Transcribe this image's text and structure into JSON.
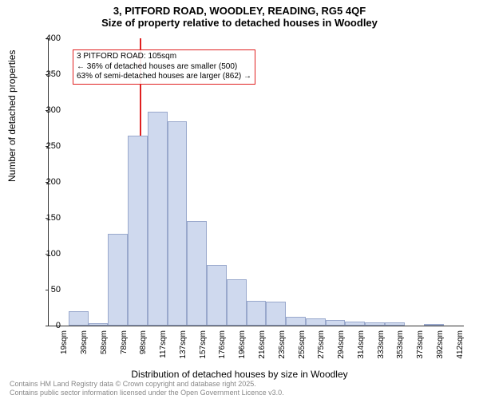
{
  "title_main": "3, PITFORD ROAD, WOODLEY, READING, RG5 4QF",
  "title_sub": "Size of property relative to detached houses in Woodley",
  "y_label": "Number of detached properties",
  "x_label": "Distribution of detached houses by size in Woodley",
  "footer_line1": "Contains HM Land Registry data © Crown copyright and database right 2025.",
  "footer_line2": "Contains public sector information licensed under the Open Government Licence v3.0.",
  "chart": {
    "type": "histogram",
    "ylim": [
      0,
      400
    ],
    "ytick_step": 50,
    "bar_fill": "#cfd9ee",
    "bar_stroke": "#99a8cc",
    "ref_line_color": "#e02020",
    "ref_line_x_value": 105,
    "background_color": "#ffffff",
    "categories": [
      "19sqm",
      "39sqm",
      "58sqm",
      "78sqm",
      "98sqm",
      "117sqm",
      "137sqm",
      "157sqm",
      "176sqm",
      "196sqm",
      "216sqm",
      "235sqm",
      "255sqm",
      "275sqm",
      "294sqm",
      "314sqm",
      "333sqm",
      "353sqm",
      "373sqm",
      "392sqm",
      "412sqm"
    ],
    "values": [
      0,
      20,
      3,
      128,
      265,
      298,
      285,
      146,
      85,
      65,
      35,
      33,
      12,
      10,
      8,
      6,
      5,
      4,
      0,
      2,
      0
    ],
    "annotation": {
      "line1": "3 PITFORD ROAD: 105sqm",
      "line2": "← 36% of detached houses are smaller (500)",
      "line3": "63% of semi-detached houses are larger (862) →"
    },
    "title_fontsize": 13,
    "label_fontsize": 12,
    "tick_fontsize": 10
  }
}
